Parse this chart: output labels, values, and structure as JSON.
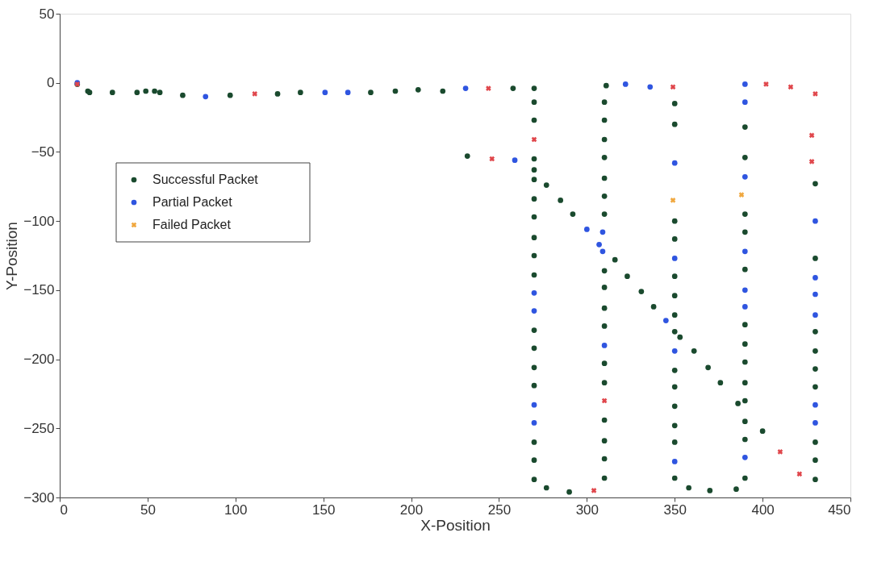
{
  "chart_data": {
    "type": "scatter",
    "xlabel": "X-Position",
    "ylabel": "Y-Position",
    "xlim": [
      0,
      450
    ],
    "xticks": [
      0,
      50,
      100,
      150,
      200,
      250,
      300,
      350,
      400,
      450
    ],
    "ylim": [
      -300,
      50
    ],
    "yticks": [
      -300,
      -250,
      -200,
      -150,
      -100,
      -50,
      0,
      50
    ],
    "grid": false,
    "legend": "left",
    "series": [
      {
        "name": "Successful Packet",
        "color": "#1a4a2e",
        "marker": "circle",
        "x": [
          10,
          16,
          17,
          30,
          44,
          49,
          54,
          57,
          70,
          97,
          124,
          137,
          177,
          191,
          204,
          218,
          258,
          270,
          270,
          270,
          270,
          270,
          270,
          270,
          270,
          270,
          270,
          270,
          270,
          270,
          270,
          270,
          270,
          270,
          270,
          277,
          290,
          311,
          310,
          310,
          310,
          310,
          310,
          310,
          310,
          310,
          310,
          310,
          310,
          310,
          310,
          310,
          310,
          310,
          310,
          232,
          277,
          285,
          292,
          316,
          323,
          331,
          338,
          353,
          361,
          369,
          376,
          386,
          400,
          350,
          350,
          350,
          350,
          350,
          350,
          350,
          350,
          350,
          350,
          350,
          350,
          350,
          350,
          358,
          370,
          385,
          390,
          390,
          390,
          390,
          390,
          390,
          390,
          390,
          390,
          390,
          390,
          390,
          390,
          430,
          430,
          430,
          430,
          430,
          430,
          430,
          430,
          430
        ],
        "values": [
          -1,
          -6,
          -7,
          -7,
          -7,
          -6,
          -6,
          -7,
          -9,
          -9,
          -8,
          -7,
          -7,
          -6,
          -5,
          -6,
          -4,
          -4,
          -14,
          -27,
          -55,
          -63,
          -70,
          -84,
          -97,
          -112,
          -125,
          -139,
          -179,
          -192,
          -206,
          -219,
          -260,
          -273,
          -287,
          -293,
          -296,
          -2,
          -14,
          -27,
          -41,
          -54,
          -69,
          -82,
          -95,
          -136,
          -148,
          -163,
          -176,
          -203,
          -217,
          -244,
          -259,
          -272,
          -286,
          -53,
          -74,
          -85,
          -95,
          -128,
          -140,
          -151,
          -162,
          -184,
          -194,
          -206,
          -217,
          -232,
          -252,
          -15,
          -30,
          -100,
          -113,
          -140,
          -154,
          -168,
          -180,
          -208,
          -220,
          -234,
          -248,
          -260,
          -286,
          -293,
          -295,
          -294,
          -32,
          -54,
          -95,
          -108,
          -135,
          -175,
          -189,
          -202,
          -217,
          -230,
          -245,
          -258,
          -286,
          -73,
          -127,
          -180,
          -194,
          -207,
          -220,
          -260,
          -273,
          -287
        ]
      },
      {
        "name": "Partial Packet",
        "color": "#2f55e0",
        "marker": "circle",
        "x": [
          10,
          83,
          151,
          164,
          231,
          259,
          300,
          309,
          307,
          309,
          345,
          322,
          336,
          270,
          270,
          270,
          270,
          310,
          350,
          350,
          350,
          350,
          390,
          390,
          390,
          390,
          390,
          390,
          390,
          430,
          430,
          430,
          430,
          430,
          430
        ],
        "values": [
          0,
          -10,
          -7,
          -7,
          -4,
          -56,
          -106,
          -108,
          -117,
          -122,
          -172,
          -1,
          -3,
          -152,
          -165,
          -233,
          -246,
          -190,
          -58,
          -127,
          -194,
          -274,
          -1,
          -14,
          -68,
          -122,
          -150,
          -162,
          -271,
          -100,
          -141,
          -153,
          -168,
          -233,
          -246
        ]
      },
      {
        "name": "Failed Packet",
        "color": "#f0a840",
        "marker": "cross",
        "x": [
          349,
          388
        ],
        "values": [
          -85,
          -81
        ]
      },
      {
        "color": "#e0474c",
        "marker": "cross",
        "x": [
          10,
          111,
          244,
          246,
          270,
          304,
          349,
          402,
          416,
          430,
          428,
          428,
          410,
          421,
          310
        ],
        "values": [
          -1,
          -8,
          -4,
          -55,
          -41,
          -295,
          -3,
          -1,
          -3,
          -8,
          -38,
          -57,
          -267,
          -283,
          -230
        ]
      }
    ]
  }
}
